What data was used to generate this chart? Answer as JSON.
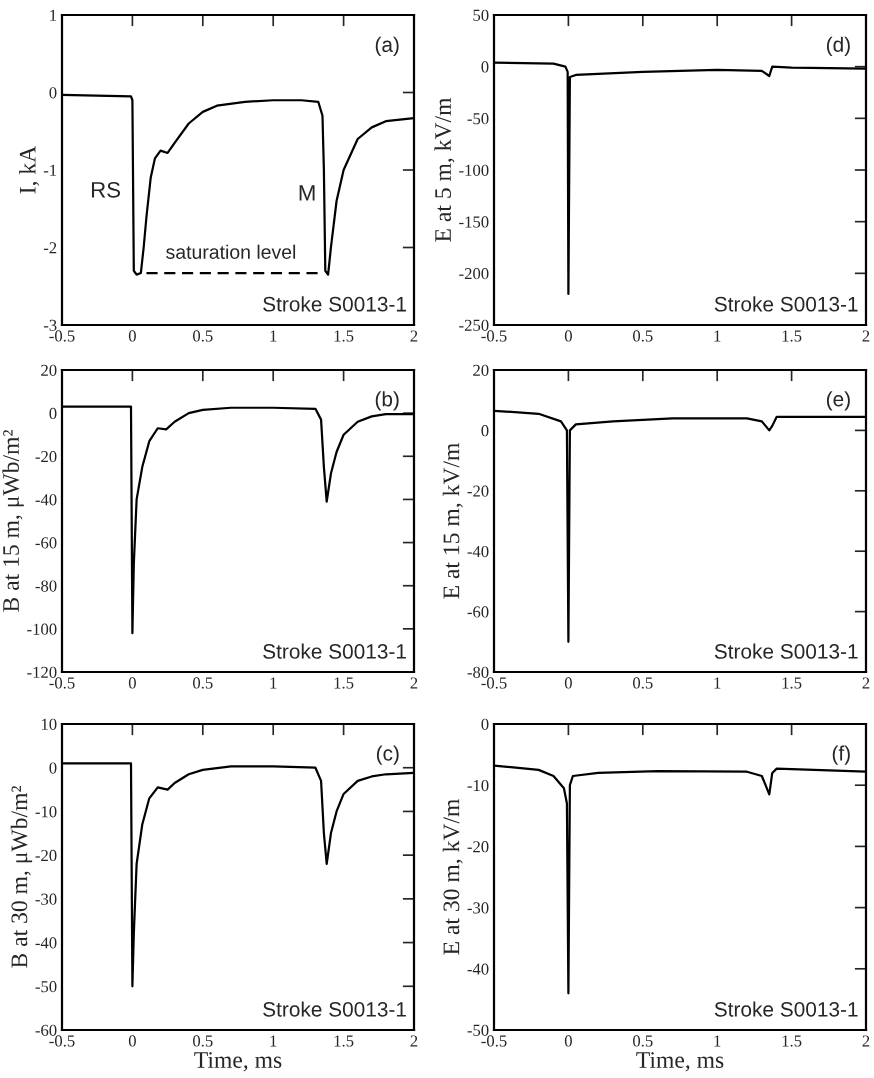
{
  "chart_data": [
    {
      "type": "line",
      "ylabel": "I, kA",
      "xlim": [
        -0.5,
        2
      ],
      "ylim": [
        -3,
        1
      ],
      "xticks": [
        -0.5,
        0,
        0.5,
        1,
        1.5,
        2
      ],
      "yticks": [
        -3,
        -2,
        -1,
        0,
        1
      ],
      "series": [
        {
          "color": "#000000",
          "x": [
            -0.5,
            -0.01,
            0.0,
            0.01,
            0.03,
            0.06,
            0.08,
            0.1,
            0.13,
            0.16,
            0.2,
            0.25,
            0.3,
            0.4,
            0.5,
            0.6,
            0.8,
            1.0,
            1.2,
            1.32,
            1.35,
            1.36,
            1.37,
            1.39,
            1.41,
            1.45,
            1.5,
            1.6,
            1.7,
            1.8,
            2.0
          ],
          "values": [
            -0.03,
            -0.05,
            -0.1,
            -2.3,
            -2.35,
            -2.33,
            -2.0,
            -1.6,
            -1.1,
            -0.85,
            -0.75,
            -0.78,
            -0.65,
            -0.4,
            -0.25,
            -0.17,
            -0.12,
            -0.1,
            -0.1,
            -0.12,
            -0.3,
            -1.0,
            -2.3,
            -2.35,
            -2.0,
            -1.4,
            -1.0,
            -0.6,
            -0.45,
            -0.37,
            -0.33
          ]
        },
        {
          "color": "#000000",
          "line_style": "dashed",
          "x": [
            0.1,
            1.35
          ],
          "values": [
            -2.33,
            -2.33
          ]
        }
      ],
      "annotations": [
        "(a)",
        "Stroke S0013-1",
        "RS",
        "M",
        "saturation level"
      ]
    },
    {
      "type": "line",
      "ylabel": "E at 5 m, kV/m",
      "xlim": [
        -0.5,
        2
      ],
      "ylim": [
        -250,
        50
      ],
      "xticks": [
        -0.5,
        0,
        0.5,
        1,
        1.5,
        2
      ],
      "yticks": [
        -250,
        -200,
        -150,
        -100,
        -50,
        0,
        50
      ],
      "series": [
        {
          "color": "#000000",
          "x": [
            -0.5,
            -0.1,
            -0.02,
            -0.005,
            0.0,
            0.01,
            0.05,
            0.5,
            1.0,
            1.3,
            1.35,
            1.37,
            1.5,
            2.0
          ],
          "values": [
            4,
            3,
            0,
            -5,
            -220,
            -10,
            -8,
            -5,
            -3,
            -4,
            -9,
            0,
            -1,
            -2
          ]
        }
      ],
      "annotations": [
        "(d)",
        "Stroke S0013-1"
      ]
    },
    {
      "type": "line",
      "ylabel": "B at 15 m, μWb/m²",
      "xlim": [
        -0.5,
        2
      ],
      "ylim": [
        -120,
        20
      ],
      "xticks": [
        -0.5,
        0,
        0.5,
        1,
        1.5,
        2
      ],
      "yticks": [
        -120,
        -100,
        -80,
        -60,
        -40,
        -20,
        0,
        20
      ],
      "series": [
        {
          "color": "#000000",
          "x": [
            -0.5,
            -0.01,
            0.0,
            0.01,
            0.03,
            0.07,
            0.12,
            0.18,
            0.24,
            0.3,
            0.4,
            0.5,
            0.7,
            1.0,
            1.3,
            1.34,
            1.36,
            1.38,
            1.41,
            1.45,
            1.5,
            1.6,
            1.7,
            1.8,
            2.0
          ],
          "values": [
            3,
            3,
            -102,
            -70,
            -40,
            -25,
            -13,
            -7,
            -7.5,
            -4,
            0,
            1.5,
            2.5,
            2.5,
            2,
            -3,
            -25,
            -41,
            -28,
            -18,
            -10,
            -4,
            -1.5,
            -0.5,
            -0.5
          ]
        }
      ],
      "annotations": [
        "(b)",
        "Stroke S0013-1"
      ]
    },
    {
      "type": "line",
      "ylabel": "E at 15 m, kV/m",
      "xlim": [
        -0.5,
        2
      ],
      "ylim": [
        -80,
        20
      ],
      "xticks": [
        -0.5,
        0,
        0.5,
        1,
        1.5,
        2
      ],
      "yticks": [
        -80,
        -60,
        -40,
        -20,
        0,
        20
      ],
      "series": [
        {
          "color": "#000000",
          "x": [
            -0.5,
            -0.2,
            -0.05,
            -0.01,
            0.0,
            0.01,
            0.05,
            0.3,
            0.7,
            1.2,
            1.3,
            1.35,
            1.37,
            1.4,
            2.0
          ],
          "values": [
            6.5,
            5.5,
            3,
            0,
            -70,
            0,
            2,
            3,
            4,
            4,
            3,
            0,
            1.5,
            4.5,
            4.5
          ]
        }
      ],
      "annotations": [
        "(e)",
        "Stroke S0013-1"
      ]
    },
    {
      "type": "line",
      "xlabel": "Time, ms",
      "ylabel": "B at 30 m, μWb/m²",
      "xlim": [
        -0.5,
        2
      ],
      "ylim": [
        -60,
        10
      ],
      "xticks": [
        -0.5,
        0,
        0.5,
        1,
        1.5,
        2
      ],
      "yticks": [
        -60,
        -50,
        -40,
        -30,
        -20,
        -10,
        0,
        10
      ],
      "series": [
        {
          "color": "#000000",
          "x": [
            -0.5,
            -0.01,
            0.0,
            0.01,
            0.03,
            0.07,
            0.12,
            0.18,
            0.25,
            0.3,
            0.4,
            0.5,
            0.7,
            1.0,
            1.3,
            1.34,
            1.36,
            1.38,
            1.41,
            1.45,
            1.5,
            1.6,
            1.7,
            1.8,
            2.0
          ],
          "values": [
            1,
            1,
            -50,
            -38,
            -22,
            -13,
            -7,
            -4.5,
            -5,
            -3.5,
            -1.5,
            -0.5,
            0.3,
            0.3,
            0,
            -3,
            -15,
            -22,
            -15,
            -10,
            -6,
            -3,
            -2,
            -1.5,
            -1.2
          ]
        }
      ],
      "annotations": [
        "(c)",
        "Stroke S0013-1"
      ]
    },
    {
      "type": "line",
      "xlabel": "Time, ms",
      "ylabel": "E at 30 m, kV/m",
      "xlim": [
        -0.5,
        2
      ],
      "ylim": [
        -50,
        0
      ],
      "xticks": [
        -0.5,
        0,
        0.5,
        1,
        1.5,
        2
      ],
      "yticks": [
        -50,
        -40,
        -30,
        -20,
        -10,
        0
      ],
      "series": [
        {
          "color": "#000000",
          "x": [
            -0.5,
            -0.2,
            -0.1,
            -0.03,
            -0.01,
            0.0,
            0.01,
            0.03,
            0.2,
            0.6,
            1.2,
            1.3,
            1.35,
            1.37,
            1.4,
            2.0
          ],
          "values": [
            -6.8,
            -7.5,
            -8.5,
            -10.5,
            -13,
            -44,
            -10,
            -8.5,
            -8,
            -7.7,
            -7.8,
            -8.5,
            -11.5,
            -8,
            -7.3,
            -7.8
          ]
        }
      ],
      "annotations": [
        "(f)",
        "Stroke S0013-1"
      ]
    }
  ]
}
